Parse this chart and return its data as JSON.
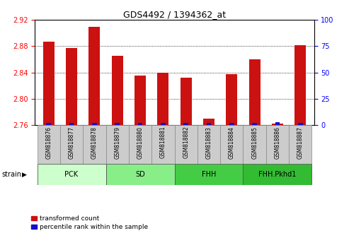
{
  "title": "GDS4492 / 1394362_at",
  "samples": [
    "GSM818876",
    "GSM818877",
    "GSM818878",
    "GSM818879",
    "GSM818880",
    "GSM818881",
    "GSM818882",
    "GSM818883",
    "GSM818884",
    "GSM818885",
    "GSM818886",
    "GSM818887"
  ],
  "transformed_count": [
    2.887,
    2.877,
    2.91,
    2.865,
    2.835,
    2.84,
    2.832,
    2.77,
    2.838,
    2.86,
    2.762,
    2.882
  ],
  "percentile_rank": [
    2,
    2,
    2,
    2,
    2,
    2,
    2,
    2,
    2,
    2,
    3,
    2
  ],
  "ylim_left": [
    2.76,
    2.92
  ],
  "ylim_right": [
    0,
    100
  ],
  "yticks_left": [
    2.76,
    2.8,
    2.84,
    2.88,
    2.92
  ],
  "yticks_right": [
    0,
    25,
    50,
    75,
    100
  ],
  "bar_color_red": "#cc1111",
  "bar_color_blue": "#1111cc",
  "groups": [
    {
      "label": "PCK",
      "start": 0,
      "end": 3,
      "color": "#ccffcc"
    },
    {
      "label": "SD",
      "start": 3,
      "end": 6,
      "color": "#88ee88"
    },
    {
      "label": "FHH",
      "start": 6,
      "end": 9,
      "color": "#44cc44"
    },
    {
      "label": "FHH.Pkhd1",
      "start": 9,
      "end": 12,
      "color": "#33bb33"
    }
  ],
  "strain_label": "strain",
  "legend_red": "transformed count",
  "legend_blue": "percentile rank within the sample",
  "tick_label_bg": "#cccccc",
  "bar_width": 0.5
}
